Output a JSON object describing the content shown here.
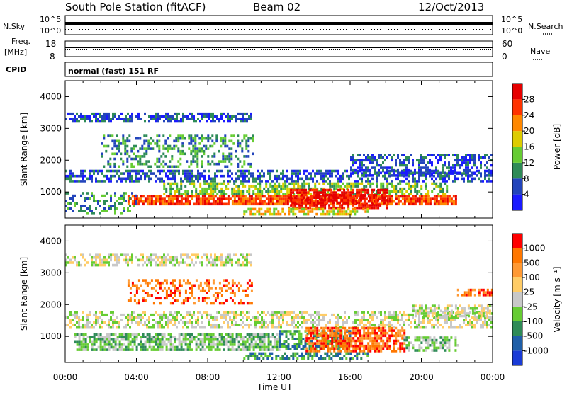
{
  "header": {
    "station": "South Pole Station (fitACF)",
    "beam": "Beam 02",
    "date": "12/Oct/2013"
  },
  "strips": {
    "nsky_label": "N.Sky",
    "nsky_ticks": [
      "10^5",
      "10^0"
    ],
    "nsearch_label": "N.Search",
    "nsearch_ticks": [
      "10^5",
      "10^0"
    ],
    "freq_label_1": "Freq.",
    "freq_label_2": "[MHz]",
    "freq_ticks": [
      "18",
      "8"
    ],
    "nave_label": "Nave",
    "nave_ticks": [
      "60",
      "0"
    ],
    "cpid_label": "CPID",
    "cpid_value": "normal (fast) 151 RF"
  },
  "chart_data": [
    {
      "type": "heatmap",
      "name": "power",
      "xlabel": "Time UT",
      "ylabel": "Slant Range [km]",
      "x_ticks": [
        "00:00",
        "04:00",
        "08:00",
        "12:00",
        "16:00",
        "20:00",
        "00:00"
      ],
      "xlim_hours": [
        0,
        24
      ],
      "y_ticks": [
        1000,
        2000,
        3000,
        4000
      ],
      "ylim_km": [
        180,
        4500
      ],
      "colorbar": {
        "label": "Power [dB]",
        "ticks": [
          "4",
          "8",
          "12",
          "16",
          "20",
          "24",
          "28"
        ],
        "colors": [
          "#1a1aff",
          "#2244bb",
          "#2e8b57",
          "#66cc33",
          "#ddcc00",
          "#ff8800",
          "#ff3300",
          "#e60000"
        ]
      },
      "bands": [
        {
          "x0": 0.0,
          "x1": 24.0,
          "r0": 1300,
          "r1": 1700,
          "level": 1,
          "density": 0.55
        },
        {
          "x0": 0.0,
          "x1": 10.5,
          "r0": 3200,
          "r1": 3500,
          "level": 1,
          "density": 0.6
        },
        {
          "x0": 2.0,
          "x1": 10.5,
          "r0": 1800,
          "r1": 2800,
          "level": 2,
          "density": 0.4
        },
        {
          "x0": 3.5,
          "x1": 22.0,
          "r0": 600,
          "r1": 900,
          "level": 6,
          "density": 0.85
        },
        {
          "x0": 5.5,
          "x1": 21.5,
          "r0": 900,
          "r1": 1300,
          "level": 3,
          "density": 0.55
        },
        {
          "x0": 12.5,
          "x1": 18.0,
          "r0": 500,
          "r1": 1100,
          "level": 7,
          "density": 0.7
        },
        {
          "x0": 16.0,
          "x1": 24.0,
          "r0": 1500,
          "r1": 2200,
          "level": 1,
          "density": 0.55
        },
        {
          "x0": 0.0,
          "x1": 4.0,
          "r0": 300,
          "r1": 1000,
          "level": 2,
          "density": 0.35
        },
        {
          "x0": 10.0,
          "x1": 17.0,
          "r0": 300,
          "r1": 500,
          "level": 4,
          "density": 0.6
        }
      ]
    },
    {
      "type": "heatmap",
      "name": "velocity",
      "xlabel": "Time UT",
      "ylabel": "Slant Range [km]",
      "x_ticks": [
        "00:00",
        "04:00",
        "08:00",
        "12:00",
        "16:00",
        "20:00",
        "00:00"
      ],
      "xlim_hours": [
        0,
        24
      ],
      "y_ticks": [
        1000,
        2000,
        3000,
        4000
      ],
      "ylim_km": [
        180,
        4500
      ],
      "colorbar": {
        "label": "Velocity [m s⁻¹]",
        "ticks": [
          "1000",
          "500",
          "100",
          "25",
          "-25",
          "-100",
          "-500",
          "-1000"
        ],
        "colors": [
          "#1a3bd6",
          "#1f5fa8",
          "#2e8b57",
          "#66cc33",
          "#c8c8c8",
          "#ffcc66",
          "#ff9933",
          "#ff7700",
          "#ff0000"
        ]
      },
      "bands": [
        {
          "x0": 0.0,
          "x1": 24.0,
          "r0": 1300,
          "r1": 1800,
          "level": 4,
          "density": 0.55
        },
        {
          "x0": 0.0,
          "x1": 10.5,
          "r0": 3200,
          "r1": 3600,
          "level": 4,
          "density": 0.55
        },
        {
          "x0": 3.5,
          "x1": 10.5,
          "r0": 2000,
          "r1": 2800,
          "level": 7,
          "density": 0.35
        },
        {
          "x0": 0.5,
          "x1": 12.0,
          "r0": 600,
          "r1": 1100,
          "level": 3,
          "density": 0.75
        },
        {
          "x0": 12.0,
          "x1": 16.0,
          "r0": 600,
          "r1": 1200,
          "level": 2,
          "density": 0.55
        },
        {
          "x0": 13.5,
          "x1": 19.0,
          "r0": 500,
          "r1": 1300,
          "level": 7,
          "density": 0.75
        },
        {
          "x0": 19.0,
          "x1": 22.0,
          "r0": 550,
          "r1": 1000,
          "level": 3,
          "density": 0.6
        },
        {
          "x0": 19.5,
          "x1": 24.0,
          "r0": 1600,
          "r1": 2000,
          "level": 4,
          "density": 0.6
        },
        {
          "x0": 22.0,
          "x1": 24.0,
          "r0": 2300,
          "r1": 2500,
          "level": 7,
          "density": 0.6
        },
        {
          "x0": 10.0,
          "x1": 17.0,
          "r0": 300,
          "r1": 500,
          "level": 2,
          "density": 0.6
        }
      ]
    }
  ]
}
